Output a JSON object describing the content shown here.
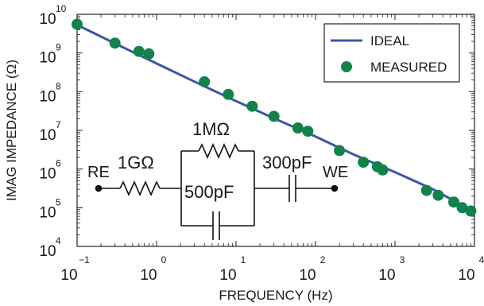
{
  "chart_data": {
    "type": "scatter",
    "title": "",
    "xlabel": "FREQUENCY (Hz)",
    "ylabel": "IMAG IMPEDANCE (Ω)",
    "x_scale": "log",
    "y_scale": "log",
    "xlim": [
      0.1,
      10000
    ],
    "ylim": [
      10000,
      10000000000
    ],
    "grid": false,
    "legend_position": "top-right",
    "x_ticks": [
      {
        "base": "10",
        "exp": "−1"
      },
      {
        "base": "10",
        "exp": "0"
      },
      {
        "base": "10",
        "exp": "1"
      },
      {
        "base": "10",
        "exp": "2"
      },
      {
        "base": "10",
        "exp": "3"
      },
      {
        "base": "10",
        "exp": "4"
      }
    ],
    "y_ticks": [
      {
        "base": "10",
        "exp": "4"
      },
      {
        "base": "10",
        "exp": "5"
      },
      {
        "base": "10",
        "exp": "6"
      },
      {
        "base": "10",
        "exp": "7"
      },
      {
        "base": "10",
        "exp": "8"
      },
      {
        "base": "10",
        "exp": "9"
      },
      {
        "base": "10",
        "exp": "10"
      }
    ],
    "series": [
      {
        "name": "IDEAL",
        "kind": "line",
        "color": "#3a57a8",
        "x": [
          0.1,
          0.3,
          1,
          3,
          10,
          30,
          100,
          300,
          1000,
          3000,
          10000
        ],
        "y": [
          5300000000,
          1770000000,
          534000000,
          182000000,
          57000000,
          20400000,
          6900000,
          2400000,
          830000,
          300000,
          78000
        ]
      },
      {
        "name": "MEASURED",
        "kind": "scatter",
        "color": "#12824a",
        "x": [
          0.1,
          0.3,
          0.6,
          0.8,
          4,
          8,
          16,
          30,
          60,
          80,
          200,
          400,
          600,
          700,
          2500,
          3500,
          5500,
          7000,
          9000
        ],
        "y": [
          5500000000,
          1800000000,
          1100000000,
          950000000,
          180000000,
          85000000,
          42000000,
          23000000,
          11500000,
          9500000,
          3000000,
          1500000,
          1150000,
          950000,
          280000,
          210000,
          140000,
          100000,
          82000
        ]
      }
    ]
  },
  "circuit": {
    "re_label": "RE",
    "we_label": "WE",
    "r1_label": "1GΩ",
    "r2_label": "1MΩ",
    "c1_label": "500pF",
    "c2_label": "300pF"
  }
}
